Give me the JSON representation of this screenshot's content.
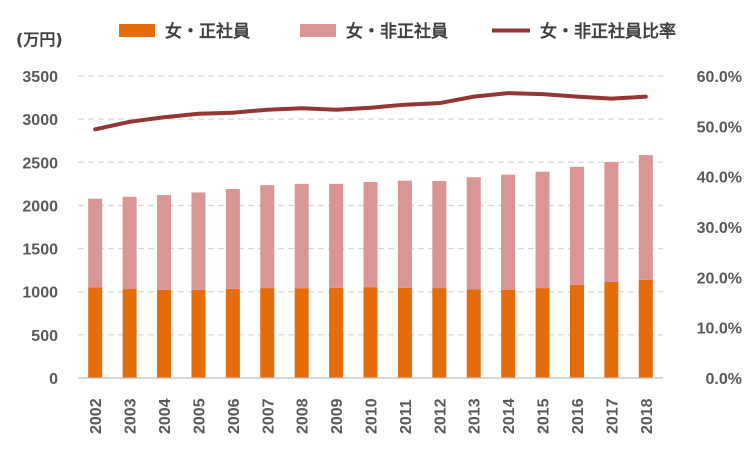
{
  "chart_data": {
    "type": "bar",
    "stacked": true,
    "categories": [
      "2002",
      "2003",
      "2004",
      "2005",
      "2006",
      "2007",
      "2008",
      "2009",
      "2010",
      "2011",
      "2012",
      "2013",
      "2014",
      "2015",
      "2016",
      "2017",
      "2018"
    ],
    "series": [
      {
        "name": "女・正社員",
        "type": "bar",
        "axis": "left",
        "color": "#E46C0A",
        "values": [
          1052,
          1031,
          1021,
          1022,
          1033,
          1042,
          1041,
          1046,
          1053,
          1046,
          1042,
          1027,
          1024,
          1042,
          1079,
          1113,
          1138
        ]
      },
      {
        "name": "女・非正社員",
        "type": "bar",
        "axis": "left",
        "color": "#D99694",
        "values": [
          1026,
          1069,
          1099,
          1128,
          1157,
          1193,
          1209,
          1204,
          1219,
          1241,
          1242,
          1300,
          1332,
          1349,
          1369,
          1390,
          1445
        ]
      },
      {
        "name": "女・非正社員比率",
        "type": "line",
        "axis": "right",
        "color": "#943634",
        "values": [
          49.4,
          50.9,
          51.8,
          52.5,
          52.7,
          53.3,
          53.6,
          53.3,
          53.7,
          54.3,
          54.6,
          55.9,
          56.6,
          56.4,
          55.9,
          55.5,
          55.9
        ]
      }
    ],
    "y_left": {
      "label": "(万円)",
      "ylim": [
        0,
        3500
      ],
      "ticks": [
        "0",
        "500",
        "1000",
        "1500",
        "2000",
        "2500",
        "3000",
        "3500"
      ]
    },
    "y_right": {
      "ylim": [
        0,
        60
      ],
      "ticks": [
        "0.0%",
        "10.0%",
        "20.0%",
        "30.0%",
        "40.0%",
        "50.0%",
        "60.0%"
      ]
    },
    "grid": true,
    "legend": "top"
  }
}
